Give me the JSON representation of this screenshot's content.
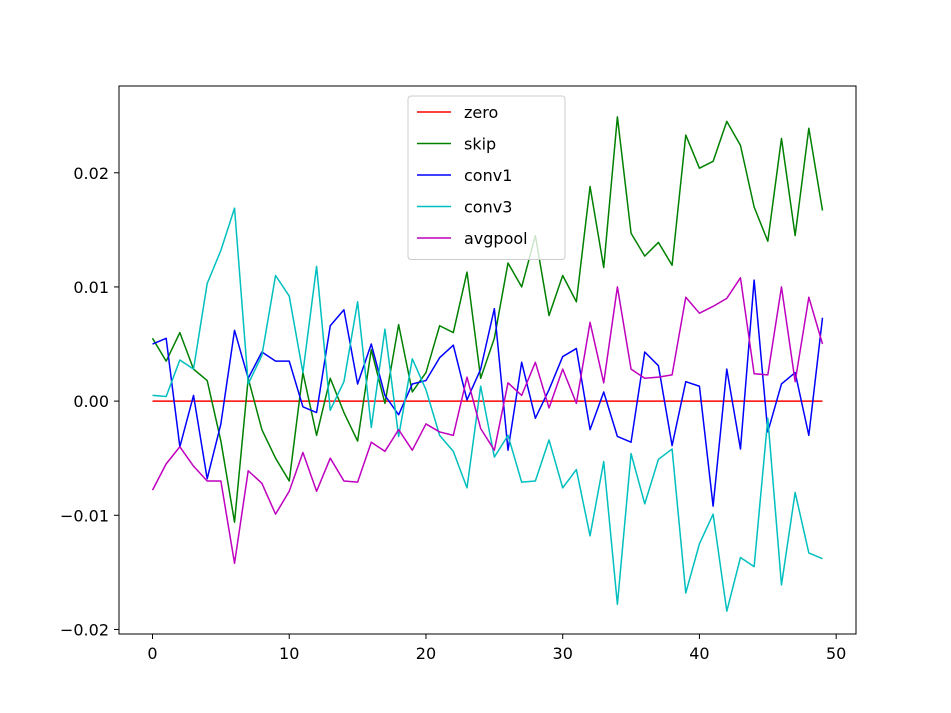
{
  "chart_data": {
    "type": "line",
    "title": "",
    "xlabel": "",
    "ylabel": "",
    "xlim": [
      -2.45,
      51.45
    ],
    "ylim": [
      -0.0204,
      0.0276
    ],
    "grid": false,
    "legend_placement": "top-center",
    "xticks": [
      {
        "value": 0,
        "label": "0"
      },
      {
        "value": 10,
        "label": "10"
      },
      {
        "value": 20,
        "label": "20"
      },
      {
        "value": 30,
        "label": "30"
      },
      {
        "value": 40,
        "label": "40"
      },
      {
        "value": 50,
        "label": "50"
      }
    ],
    "yticks": [
      {
        "value": -0.02,
        "label": "−0.02"
      },
      {
        "value": -0.01,
        "label": "−0.01"
      },
      {
        "value": 0.0,
        "label": "0.00"
      },
      {
        "value": 0.01,
        "label": "0.01"
      },
      {
        "value": 0.02,
        "label": "0.02"
      }
    ],
    "x": [
      0,
      1,
      2,
      3,
      4,
      5,
      6,
      7,
      8,
      9,
      10,
      11,
      12,
      13,
      14,
      15,
      16,
      17,
      18,
      19,
      20,
      21,
      22,
      23,
      24,
      25,
      26,
      27,
      28,
      29,
      30,
      31,
      32,
      33,
      34,
      35,
      36,
      37,
      38,
      39,
      40,
      41,
      42,
      43,
      44,
      45,
      46,
      47,
      48,
      49
    ],
    "series": [
      {
        "name": "zero",
        "color": "#ff0000",
        "values": [
          0,
          0,
          0,
          0,
          0,
          0,
          0,
          0,
          0,
          0,
          0,
          0,
          0,
          0,
          0,
          0,
          0,
          0,
          0,
          0,
          0,
          0,
          0,
          0,
          0,
          0,
          0,
          0,
          0,
          0,
          0,
          0,
          0,
          0,
          0,
          0,
          0,
          0,
          0,
          0,
          0,
          0,
          0,
          0,
          0,
          0,
          0,
          0,
          0,
          0
        ]
      },
      {
        "name": "skip",
        "color": "#008000",
        "values": [
          0.0055,
          0.0035,
          0.006,
          0.0028,
          0.0018,
          -0.0035,
          -0.0106,
          0.002,
          -0.0025,
          -0.005,
          -0.007,
          0.0025,
          -0.003,
          0.002,
          -0.001,
          -0.0035,
          0.0045,
          -0.0002,
          0.0067,
          0.0008,
          0.0025,
          0.0066,
          0.006,
          0.0113,
          0.002,
          0.0055,
          0.0121,
          0.01,
          0.0145,
          0.0075,
          0.011,
          0.0087,
          0.0188,
          0.0117,
          0.0249,
          0.0147,
          0.0127,
          0.0139,
          0.0119,
          0.0233,
          0.0204,
          0.021,
          0.0245,
          0.0224,
          0.017,
          0.014,
          0.023,
          0.0145,
          0.0239,
          0.0167
        ]
      },
      {
        "name": "conv1",
        "color": "#0000ff",
        "values": [
          0.005,
          0.0055,
          -0.004,
          0.0005,
          -0.0068,
          -0.002,
          0.0062,
          0.002,
          0.0043,
          0.0035,
          0.0035,
          -0.0005,
          -0.001,
          0.0066,
          0.008,
          0.0015,
          0.005,
          0.0005,
          -0.0012,
          0.0015,
          0.0018,
          0.0038,
          0.0049,
          0.0001,
          0.0028,
          0.0081,
          -0.0043,
          0.0034,
          -0.0015,
          0.001,
          0.0039,
          0.0046,
          -0.0025,
          0.0008,
          -0.0031,
          -0.0036,
          0.0043,
          0.0031,
          -0.0039,
          0.0017,
          0.0013,
          -0.0092,
          0.0028,
          -0.0042,
          0.0106,
          -0.0027,
          0.0015,
          0.0025,
          -0.003,
          0.0073
        ]
      },
      {
        "name": "conv3",
        "color": "#00bfbf",
        "values": [
          0.0005,
          0.0004,
          0.0036,
          0.0028,
          0.0103,
          0.0132,
          0.0169,
          0.0015,
          0.004,
          0.011,
          0.0092,
          0.0025,
          0.0118,
          -0.0008,
          0.0017,
          0.0087,
          -0.0023,
          0.0063,
          -0.0031,
          0.0037,
          0.001,
          -0.003,
          -0.0044,
          -0.0076,
          0.0013,
          -0.0049,
          -0.003,
          -0.0071,
          -0.007,
          -0.0034,
          -0.0076,
          -0.006,
          -0.0118,
          -0.0053,
          -0.0178,
          -0.0046,
          -0.009,
          -0.0051,
          -0.0042,
          -0.0168,
          -0.0125,
          -0.0099,
          -0.0184,
          -0.0137,
          -0.0145,
          -0.0015,
          -0.0161,
          -0.008,
          -0.0133,
          -0.0138
        ]
      },
      {
        "name": "avgpool",
        "color": "#bf00bf",
        "values": [
          -0.0078,
          -0.0055,
          -0.004,
          -0.0057,
          -0.007,
          -0.007,
          -0.0142,
          -0.0061,
          -0.0072,
          -0.0099,
          -0.0079,
          -0.0045,
          -0.0079,
          -0.005,
          -0.007,
          -0.0071,
          -0.0036,
          -0.0044,
          -0.0025,
          -0.0043,
          -0.002,
          -0.0027,
          -0.003,
          0.0021,
          -0.0024,
          -0.0043,
          0.0016,
          0.0005,
          0.0034,
          -0.0006,
          0.0028,
          -0.0002,
          0.0069,
          0.0016,
          0.01,
          0.0028,
          0.002,
          0.0021,
          0.0023,
          0.0091,
          0.0077,
          0.0083,
          0.009,
          0.0108,
          0.0024,
          0.0023,
          0.01,
          0.0017,
          0.0091,
          0.005
        ]
      }
    ]
  }
}
